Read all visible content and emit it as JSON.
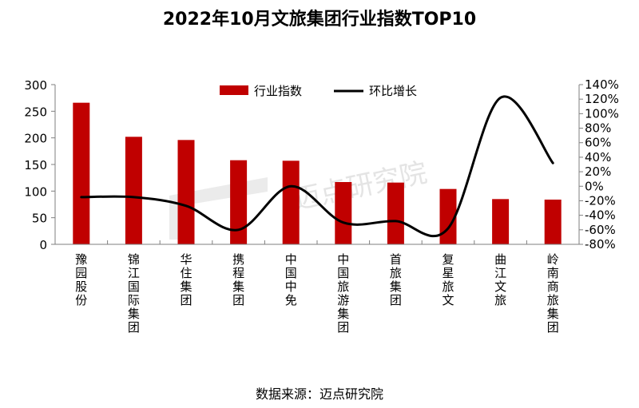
{
  "title": "2022年10月文旅集团行业指数TOP10",
  "source": "数据来源：迈点研究院",
  "watermark": "迈点研究院",
  "colors": {
    "bar": "#C00000",
    "line": "#000000",
    "axis": "#7f7f7f"
  },
  "chart_data": {
    "type": "bar+line",
    "title": "2022年10月文旅集团行业指数TOP10",
    "categories": [
      "豫园股份",
      "锦江国际集团",
      "华住集团",
      "携程集团",
      "中国中免",
      "中国旅游集团",
      "首旅集团",
      "复星旅文",
      "曲江文旅",
      "岭南商旅集团"
    ],
    "series": [
      {
        "name": "行业指数",
        "type": "bar",
        "axis": "left",
        "values": [
          266,
          202,
          196,
          158,
          157,
          117,
          116,
          104,
          85,
          84
        ]
      },
      {
        "name": "环比增长",
        "type": "line",
        "axis": "right",
        "unit": "%",
        "values": [
          -15,
          -15,
          -27,
          -60,
          0,
          -50,
          -48,
          -58,
          122,
          32
        ]
      }
    ],
    "left_axis": {
      "ylim": [
        0,
        300
      ],
      "ticks": [
        "0",
        "50",
        "100",
        "150",
        "200",
        "250",
        "300"
      ]
    },
    "right_axis": {
      "ylim": [
        -80,
        140
      ],
      "ticks": [
        "-80%",
        "-60%",
        "-40%",
        "-20%",
        "0%",
        "20%",
        "40%",
        "60%",
        "80%",
        "100%",
        "120%",
        "140%"
      ]
    },
    "legend": {
      "position": "top",
      "entries": [
        "行业指数",
        "环比增长"
      ]
    },
    "grid": false,
    "xlabel": "",
    "ylabel": ""
  }
}
